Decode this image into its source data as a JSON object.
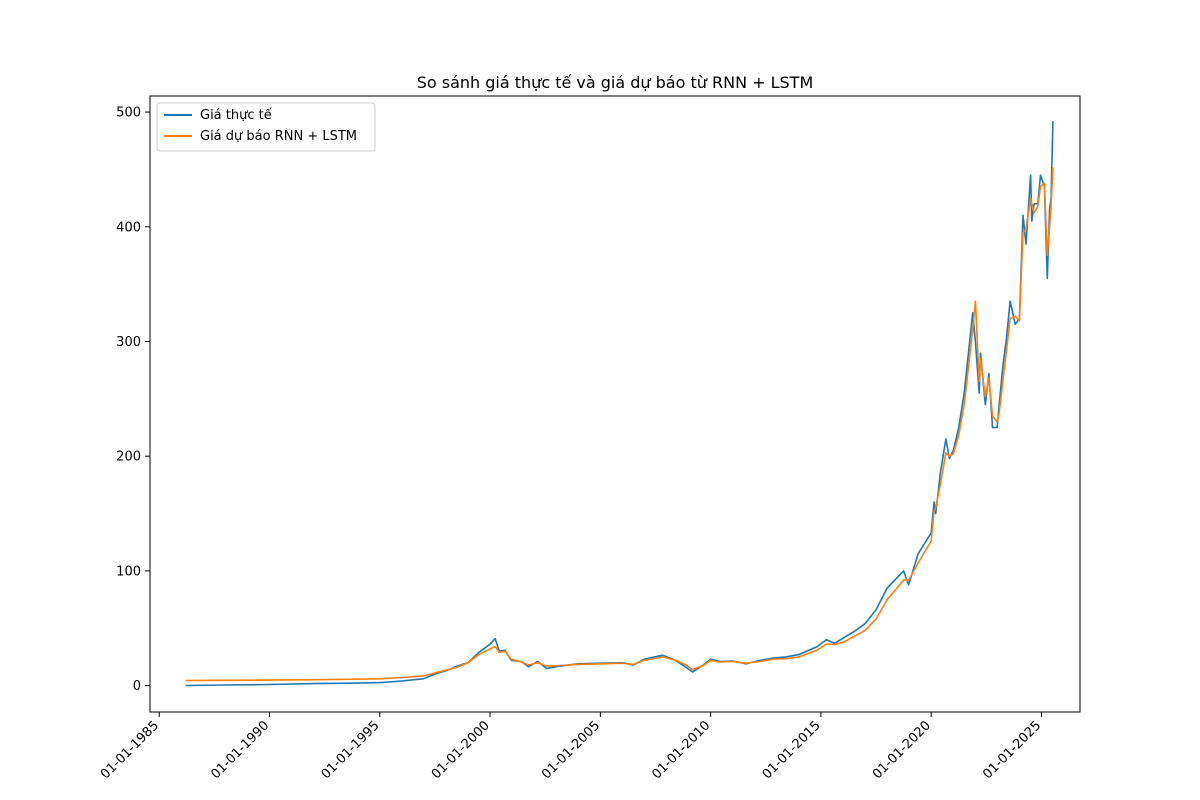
{
  "chart_data": {
    "type": "line",
    "title": "So sánh giá thực tế và giá dự báo từ RNN + LSTM",
    "xlabel": "",
    "ylabel": "",
    "ylim": [
      -23,
      514
    ],
    "xlim": [
      "1984-08-01",
      "2026-10-01"
    ],
    "grid": false,
    "legend_position": "upper-left",
    "x_ticks": [
      {
        "date": "1985-01-01",
        "label": "01-01-1985"
      },
      {
        "date": "1990-01-01",
        "label": "01-01-1990"
      },
      {
        "date": "1995-01-01",
        "label": "01-01-1995"
      },
      {
        "date": "2000-01-01",
        "label": "01-01-2000"
      },
      {
        "date": "2005-01-01",
        "label": "01-01-2005"
      },
      {
        "date": "2010-01-01",
        "label": "01-01-2010"
      },
      {
        "date": "2015-01-01",
        "label": "01-01-2015"
      },
      {
        "date": "2020-01-01",
        "label": "01-01-2020"
      },
      {
        "date": "2025-01-01",
        "label": "01-01-2025"
      }
    ],
    "y_ticks": [
      0,
      100,
      200,
      300,
      400,
      500
    ],
    "series": [
      {
        "name": "Giá thực tế",
        "color": "#1f77b4",
        "x": [
          "1986-03-13",
          "1988-01-01",
          "1990-01-01",
          "1992-01-01",
          "1994-01-01",
          "1995-01-01",
          "1996-01-01",
          "1997-01-01",
          "1997-07-01",
          "1998-01-01",
          "1998-07-01",
          "1999-01-01",
          "1999-07-01",
          "1999-12-30",
          "2000-03-27",
          "2000-06-01",
          "2000-09-01",
          "2000-12-20",
          "2001-06-01",
          "2001-10-01",
          "2002-03-01",
          "2002-07-24",
          "2003-03-01",
          "2004-01-01",
          "2005-01-01",
          "2006-01-01",
          "2006-07-01",
          "2007-01-01",
          "2007-10-31",
          "2008-06-01",
          "2008-11-20",
          "2009-03-09",
          "2009-09-01",
          "2010-01-01",
          "2010-06-01",
          "2011-01-01",
          "2011-08-08",
          "2012-04-01",
          "2012-11-01",
          "2013-06-01",
          "2014-01-01",
          "2014-11-01",
          "2015-04-01",
          "2015-08-24",
          "2016-01-20",
          "2016-07-01",
          "2017-01-01",
          "2017-07-01",
          "2018-01-01",
          "2018-10-01",
          "2018-12-24",
          "2019-06-01",
          "2019-12-31",
          "2020-02-19",
          "2020-03-16",
          "2020-06-01",
          "2020-09-02",
          "2020-10-30",
          "2021-01-01",
          "2021-04-01",
          "2021-07-01",
          "2021-11-19",
          "2022-01-03",
          "2022-03-07",
          "2022-03-29",
          "2022-06-16",
          "2022-08-15",
          "2022-10-13",
          "2022-12-28",
          "2023-02-01",
          "2023-04-01",
          "2023-06-01",
          "2023-07-31",
          "2023-10-26",
          "2024-01-01",
          "2024-03-01",
          "2024-04-19",
          "2024-07-05",
          "2024-07-25",
          "2024-09-01",
          "2024-11-01",
          "2024-12-16",
          "2025-02-19",
          "2025-04-08",
          "2025-05-15",
          "2025-06-10",
          "2025-07-10"
        ],
        "values": [
          0.1,
          0.5,
          1.0,
          1.8,
          2.2,
          2.6,
          4.0,
          6.0,
          10.0,
          13.0,
          17.0,
          20.0,
          29.0,
          36.0,
          41.0,
          30.0,
          31.0,
          22.0,
          21.0,
          16.5,
          21.0,
          15.0,
          17.0,
          19.0,
          19.5,
          20.0,
          18.0,
          23.0,
          26.5,
          22.0,
          16.0,
          12.0,
          18.0,
          23.0,
          21.0,
          21.5,
          19.0,
          22.0,
          24.0,
          25.0,
          27.0,
          34.0,
          40.0,
          37.0,
          42.0,
          47.0,
          54.0,
          66.0,
          85.0,
          100.0,
          88.0,
          115.0,
          133.0,
          160.0,
          150.0,
          185.0,
          215.0,
          198.0,
          205.0,
          225.0,
          255.0,
          325.0,
          300.0,
          255.0,
          290.0,
          245.0,
          272.0,
          225.0,
          225.0,
          245.0,
          278.0,
          303.0,
          335.0,
          315.0,
          320.0,
          410.0,
          385.0,
          445.0,
          405.0,
          420.0,
          420.0,
          445.0,
          435.0,
          355.0,
          415.0,
          425.0,
          492.0
        ]
      },
      {
        "name": "Giá dự báo RNN + LSTM",
        "color": "#ff7f0e",
        "x": [
          "1986-03-13",
          "1988-01-01",
          "1990-01-01",
          "1992-01-01",
          "1994-01-01",
          "1995-01-01",
          "1996-01-01",
          "1997-01-01",
          "1997-07-01",
          "1998-01-01",
          "1998-07-01",
          "1999-01-01",
          "1999-07-01",
          "1999-12-30",
          "2000-03-27",
          "2000-06-01",
          "2000-09-01",
          "2000-12-20",
          "2001-06-01",
          "2001-10-01",
          "2002-03-01",
          "2002-07-24",
          "2003-03-01",
          "2004-01-01",
          "2005-01-01",
          "2006-01-01",
          "2006-07-01",
          "2007-01-01",
          "2007-10-31",
          "2008-06-01",
          "2008-11-20",
          "2009-03-09",
          "2009-09-01",
          "2010-01-01",
          "2010-06-01",
          "2011-01-01",
          "2011-08-08",
          "2012-04-01",
          "2012-11-01",
          "2013-06-01",
          "2014-01-01",
          "2014-11-01",
          "2015-04-01",
          "2015-08-24",
          "2016-01-20",
          "2016-07-01",
          "2017-01-01",
          "2017-07-01",
          "2018-01-01",
          "2018-10-01",
          "2018-12-24",
          "2019-06-01",
          "2019-12-31",
          "2020-02-19",
          "2020-03-16",
          "2020-06-01",
          "2020-09-02",
          "2020-10-30",
          "2021-01-01",
          "2021-04-01",
          "2021-07-01",
          "2021-11-19",
          "2022-01-03",
          "2022-03-07",
          "2022-03-29",
          "2022-06-16",
          "2022-08-15",
          "2022-10-13",
          "2022-12-28",
          "2023-02-01",
          "2023-04-01",
          "2023-06-01",
          "2023-07-31",
          "2023-10-26",
          "2024-01-01",
          "2024-03-01",
          "2024-04-19",
          "2024-07-05",
          "2024-07-25",
          "2024-09-01",
          "2024-11-01",
          "2024-12-16",
          "2025-02-19",
          "2025-04-08",
          "2025-05-15",
          "2025-06-10",
          "2025-07-10"
        ],
        "values": [
          4.5,
          4.6,
          4.8,
          5.2,
          5.6,
          5.9,
          7.0,
          8.5,
          11.0,
          13.5,
          16.0,
          20.0,
          27.0,
          32.0,
          34.0,
          29.0,
          30.0,
          23.0,
          20.5,
          18.0,
          20.0,
          17.0,
          17.5,
          18.5,
          19.0,
          19.5,
          18.5,
          22.0,
          25.0,
          22.0,
          18.0,
          14.0,
          17.5,
          22.0,
          20.5,
          21.0,
          19.5,
          21.0,
          23.0,
          23.5,
          25.0,
          31.0,
          36.0,
          36.0,
          38.0,
          43.0,
          48.0,
          58.0,
          75.0,
          92.0,
          92.0,
          107.0,
          126.0,
          152.0,
          155.0,
          175.0,
          203.0,
          200.0,
          202.0,
          218.0,
          245.0,
          310.0,
          335.0,
          265.0,
          285.0,
          252.0,
          268.0,
          235.0,
          230.0,
          238.0,
          265.0,
          292.0,
          320.0,
          322.0,
          318.0,
          395.0,
          398.0,
          425.0,
          420.0,
          412.0,
          418.0,
          435.0,
          438.0,
          375.0,
          400.0,
          418.0,
          452.0
        ]
      }
    ]
  }
}
